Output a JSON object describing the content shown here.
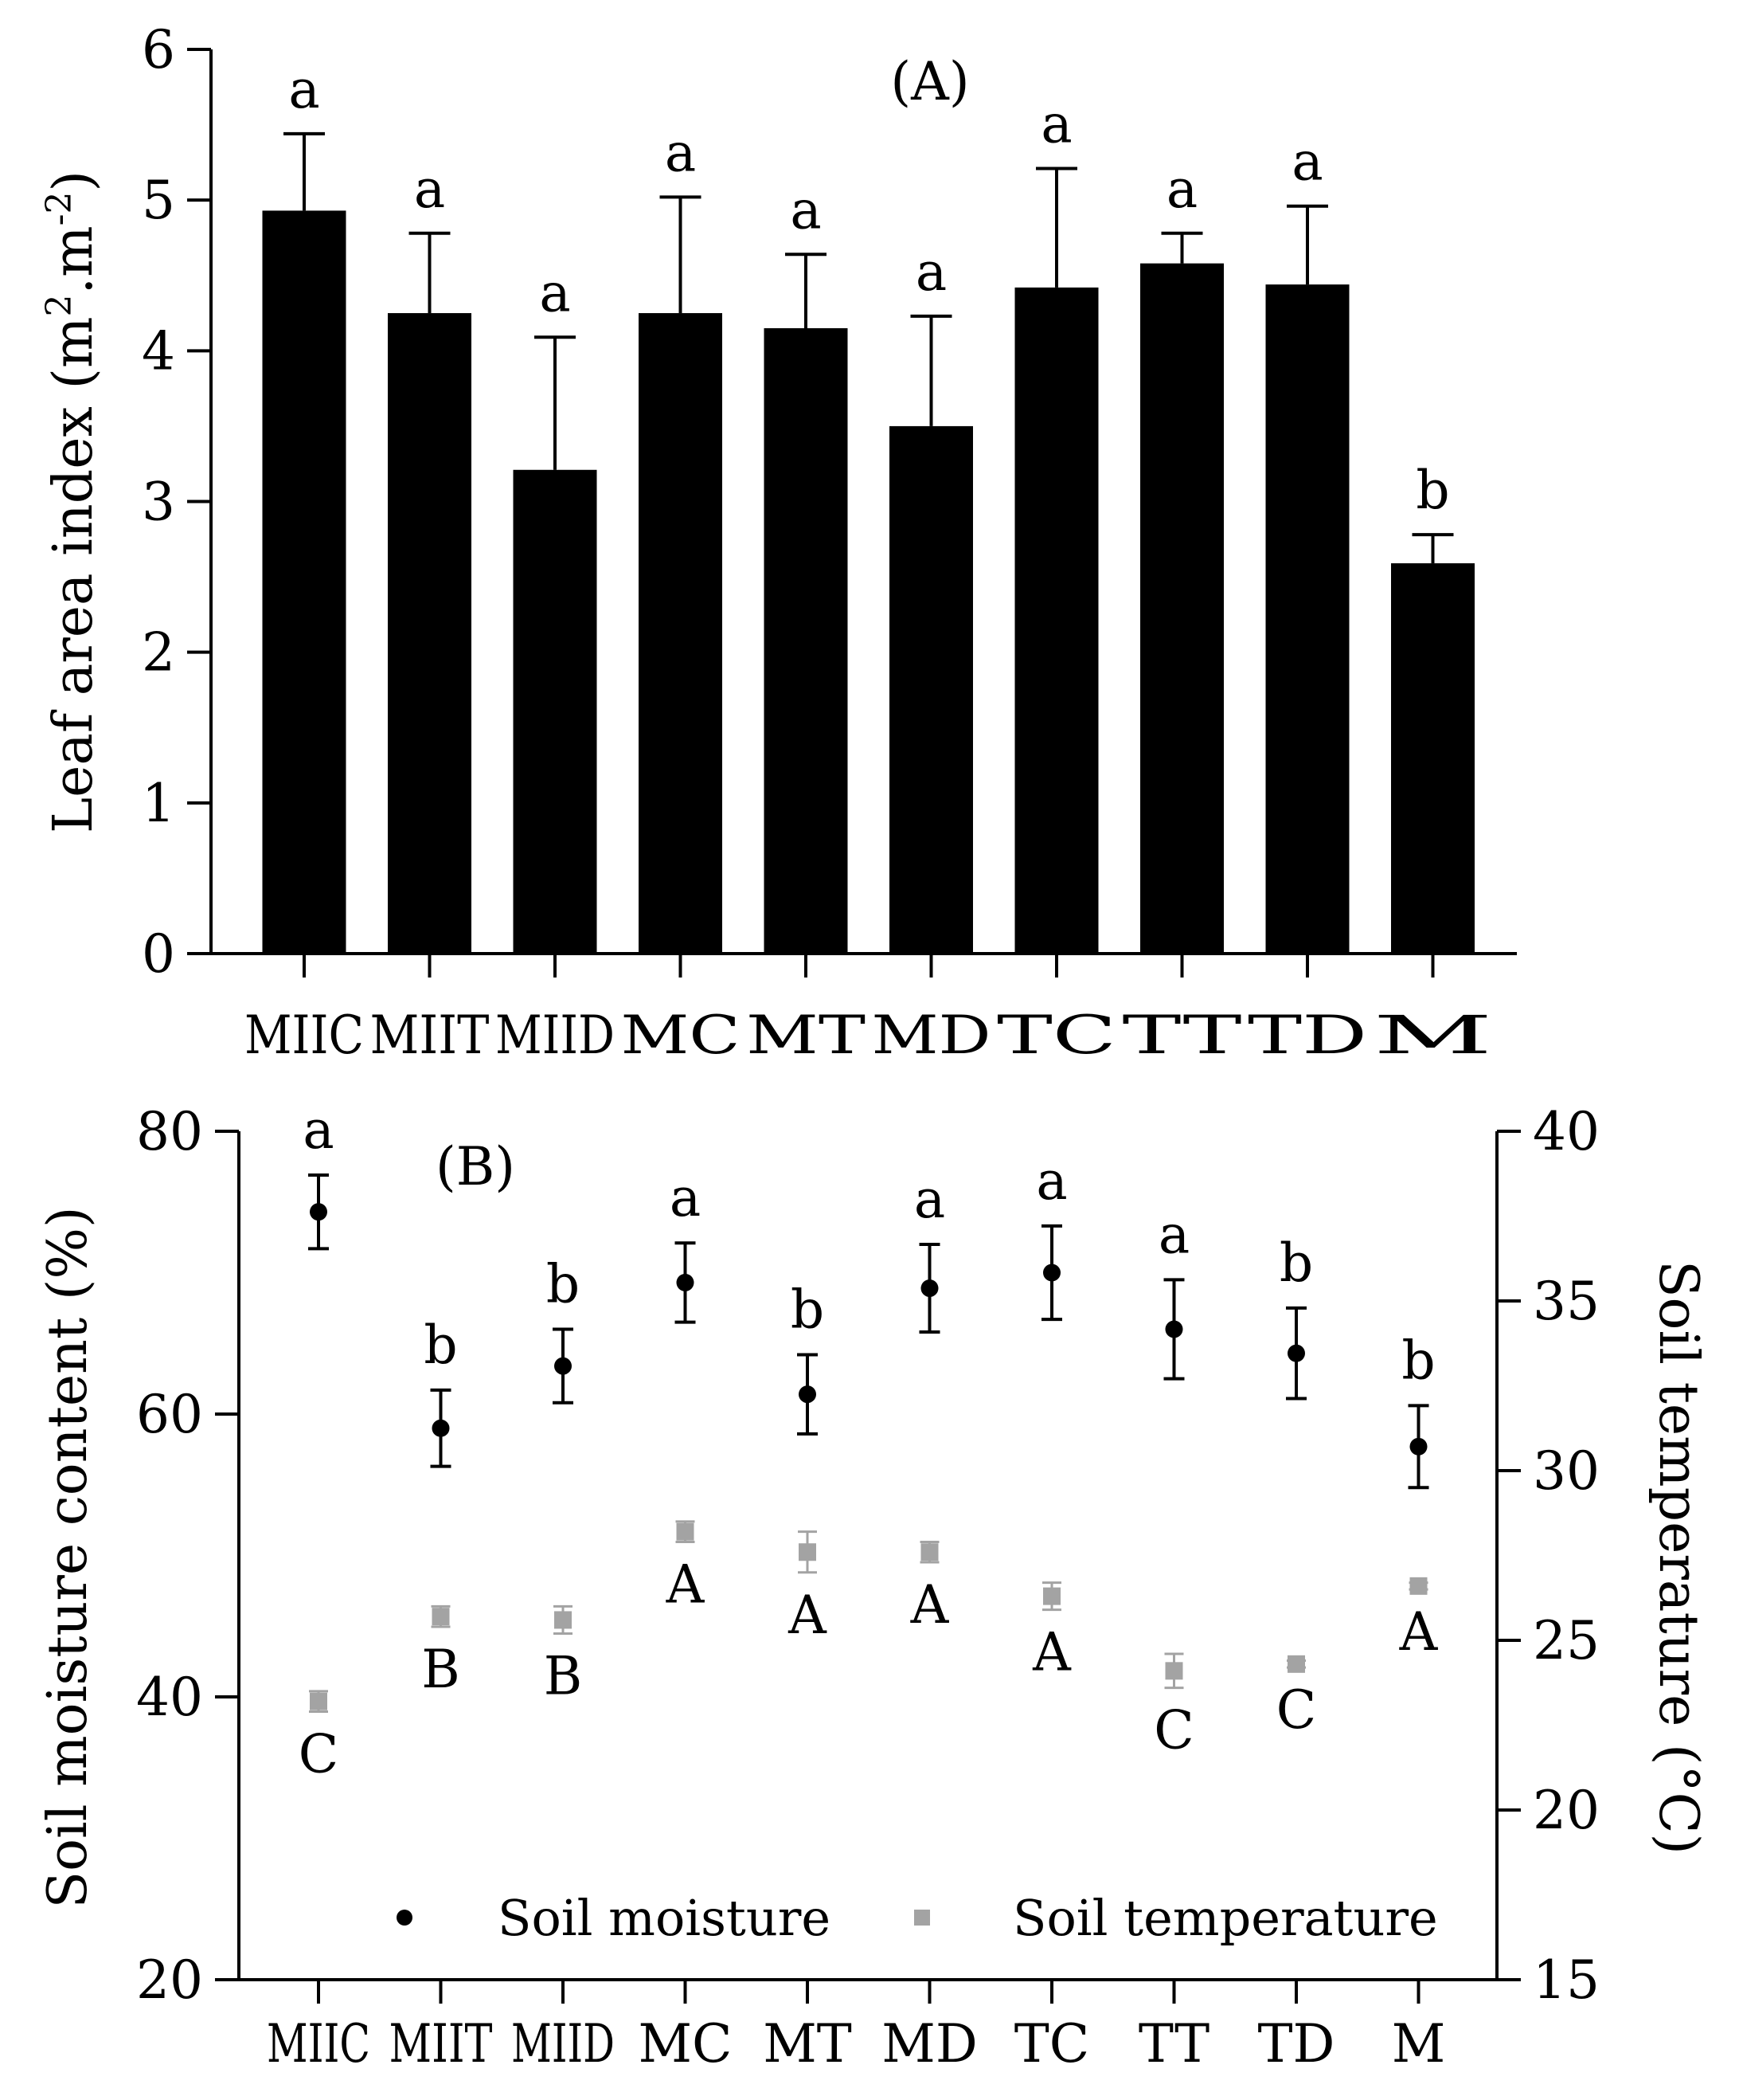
{
  "chart_data": [
    {
      "type": "bar",
      "panel_label": "(A)",
      "categories": [
        "MIIC",
        "MIIT",
        "MIID",
        "MC",
        "MT",
        "MD",
        "TC",
        "TT",
        "TD",
        "M"
      ],
      "values": [
        4.93,
        4.25,
        3.21,
        4.25,
        4.15,
        3.5,
        4.42,
        4.58,
        4.44,
        2.59
      ],
      "errors": [
        0.51,
        0.53,
        0.88,
        0.77,
        0.49,
        0.73,
        0.79,
        0.2,
        0.52,
        0.19
      ],
      "significance": [
        "a",
        "a",
        "a",
        "a",
        "a",
        "a",
        "a",
        "a",
        "a",
        "b"
      ],
      "ylabel": "Leaf area index (m",
      "ylabel_sup1": "2",
      "ylabel_mid": ".m",
      "ylabel_sup2": "-2",
      "ylabel_end": ")",
      "ylim": [
        0,
        6
      ],
      "yticks": [
        0,
        1,
        2,
        3,
        4,
        5,
        6
      ],
      "bar_color": "#000000"
    },
    {
      "type": "scatter",
      "panel_label": "(B)",
      "categories": [
        "MIIC",
        "MIIT",
        "MIID",
        "MC",
        "MT",
        "MD",
        "TC",
        "TT",
        "TD",
        "M"
      ],
      "series": [
        {
          "name": "Soil moisture",
          "axis": "left",
          "values": [
            74.3,
            59.0,
            63.4,
            69.3,
            61.4,
            68.9,
            70.0,
            66.0,
            64.3,
            57.7
          ],
          "errors": [
            2.6,
            2.7,
            2.6,
            2.8,
            2.8,
            3.1,
            3.3,
            3.5,
            3.2,
            2.9
          ],
          "significance": [
            "a",
            "b",
            "b",
            "a",
            "b",
            "a",
            "a",
            "a",
            "b",
            "b"
          ],
          "color": "#000000",
          "marker": "circle"
        },
        {
          "name": "Soil temperature",
          "axis": "right",
          "values": [
            23.2,
            25.7,
            25.6,
            28.2,
            27.6,
            27.6,
            26.3,
            24.1,
            24.3,
            26.6
          ],
          "errors": [
            0.3,
            0.3,
            0.4,
            0.3,
            0.6,
            0.3,
            0.4,
            0.5,
            0.1,
            0.1
          ],
          "significance": [
            "C",
            "B",
            "B",
            "A",
            "A",
            "A",
            "A",
            "C",
            "C",
            "A"
          ],
          "color": "#a3a3a3",
          "marker": "square"
        }
      ],
      "ylabel": "Soil moisture content (%)",
      "ylim": [
        20,
        80
      ],
      "yticks": [
        20,
        40,
        60,
        80
      ],
      "y2label": "Soil temperature (°C)",
      "y2lim": [
        15,
        40
      ],
      "y2ticks": [
        15,
        20,
        25,
        30,
        35,
        40
      ],
      "legend": [
        "Soil moisture",
        "Soil temperature"
      ],
      "legend_position": "bottom-center"
    }
  ]
}
